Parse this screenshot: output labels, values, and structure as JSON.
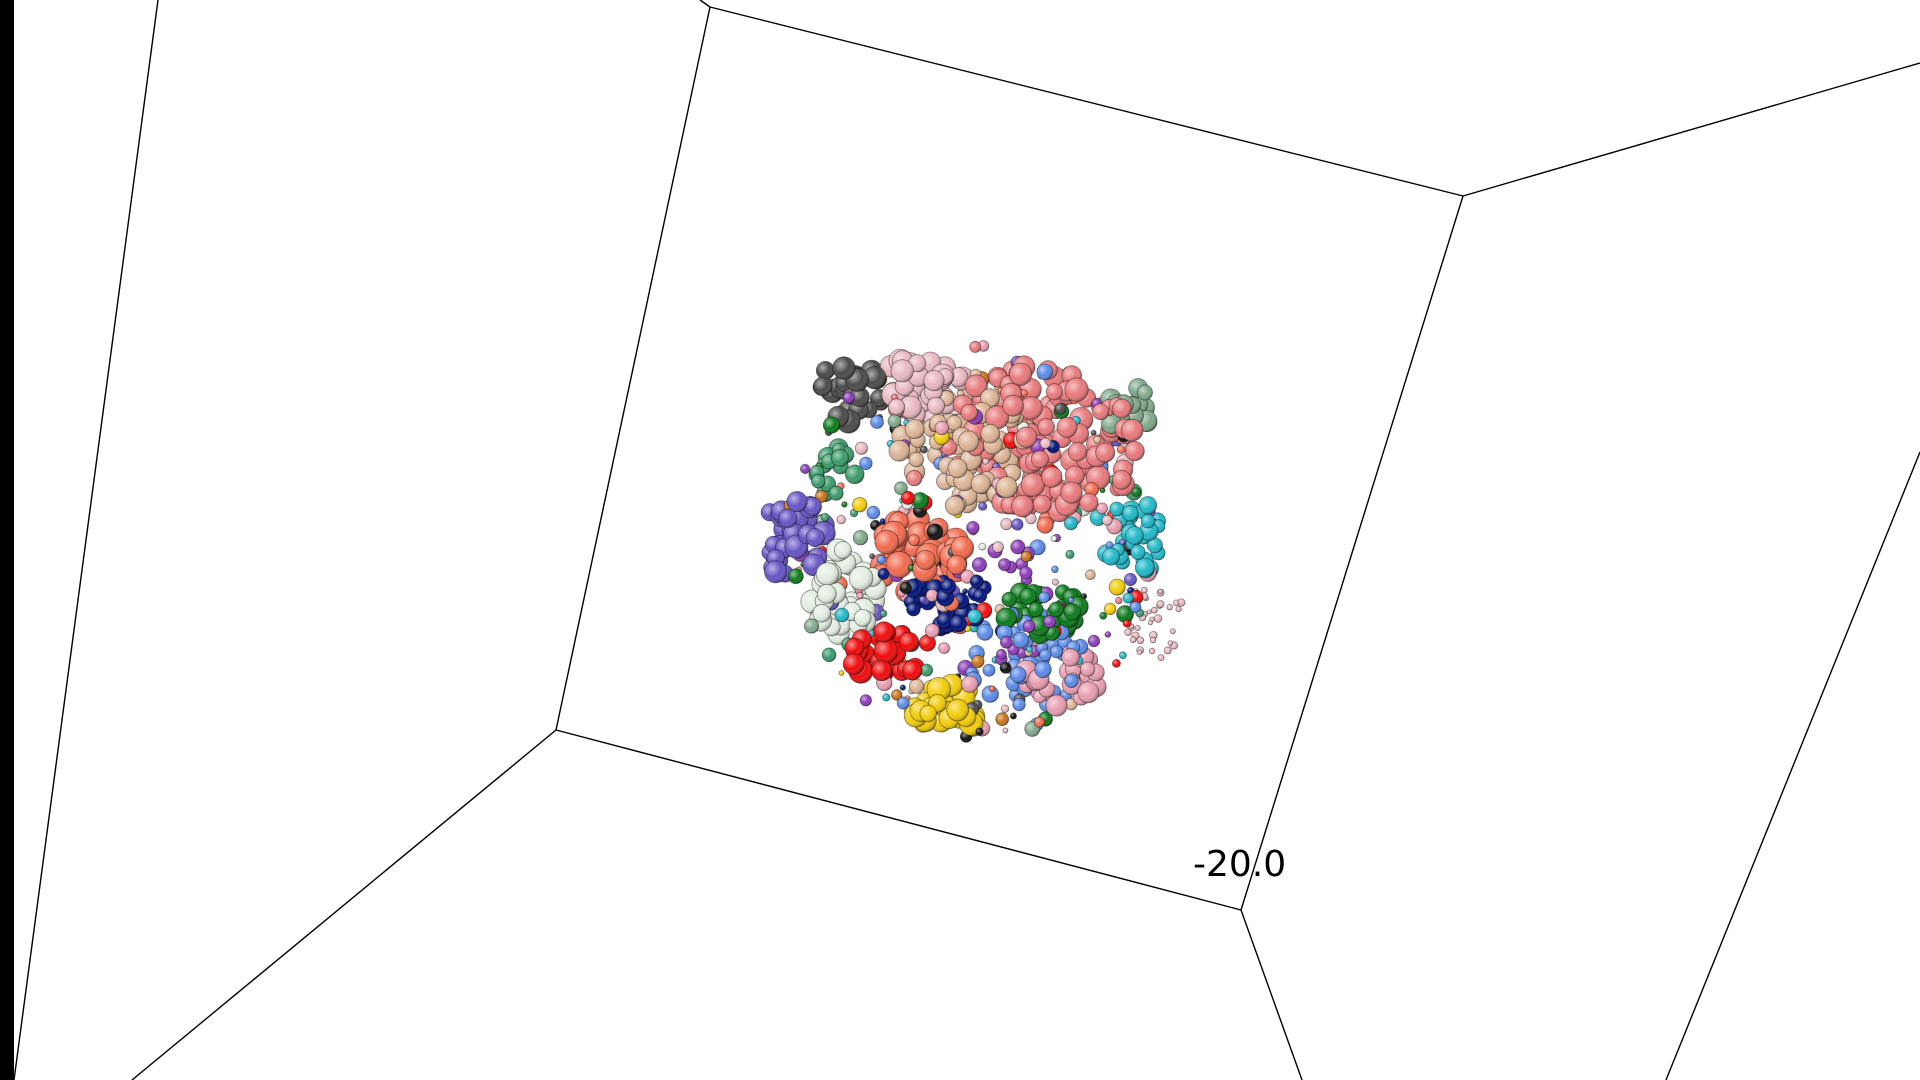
{
  "viewer": {
    "background": "#ffffff",
    "border_color": "#000000",
    "axis_tick_label": "-20.0"
  },
  "structure": {
    "palette": [
      "#e8787a",
      "#dcb394",
      "#f26a4e",
      "#e8b8c0",
      "#4a4a4a",
      "#6654c4",
      "#e2ede0",
      "#1fb8c8",
      "#00127a",
      "#0a7a1a",
      "#f00a0a",
      "#f2cc0a",
      "#5a8ae8",
      "#8c3ab8",
      "#7fa88a",
      "#e89cb0",
      "#3a9a6a",
      "#c8731a",
      "#111111"
    ]
  }
}
